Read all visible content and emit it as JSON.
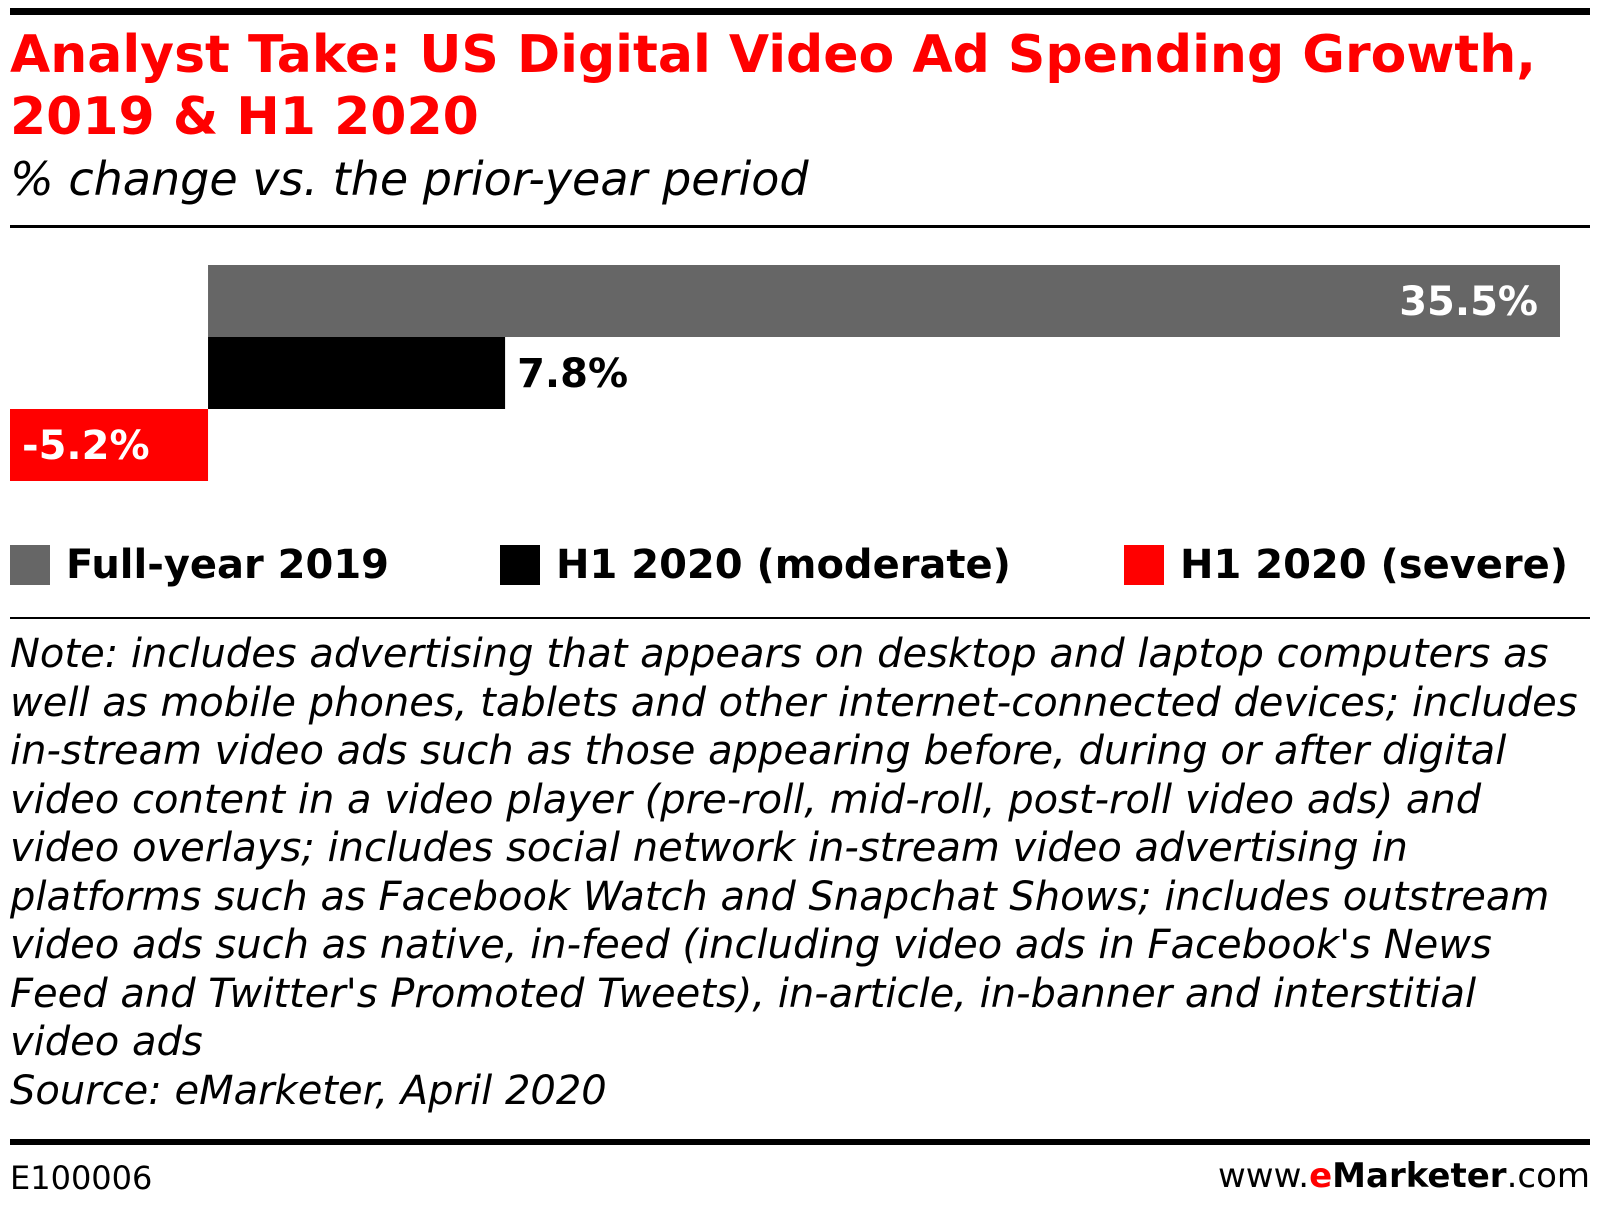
{
  "header": {
    "title": "Analyst Take: US Digital Video Ad Spending Growth, 2019 & H1 2020",
    "subtitle": "% change vs. the prior-year period"
  },
  "chart_data": {
    "type": "bar",
    "orientation": "horizontal",
    "categories": [
      "Full-year 2019",
      "H1 2020 (moderate)",
      "H1 2020 (severe)"
    ],
    "values": [
      35.5,
      7.8,
      -5.2
    ],
    "value_labels": [
      "35.5%",
      "7.8%",
      "-5.2%"
    ],
    "colors": [
      "#666666",
      "#000000",
      "#ff0000"
    ],
    "xlim": [
      -5.2,
      35.5
    ],
    "grid": false,
    "legend_placement": "bottom"
  },
  "legend": {
    "items": [
      {
        "label": "Full-year 2019",
        "color": "#666666"
      },
      {
        "label": "H1 2020 (moderate)",
        "color": "#000000"
      },
      {
        "label": "H1 2020 (severe)",
        "color": "#ff0000"
      }
    ]
  },
  "note": {
    "text": "Note: includes advertising that appears on desktop and laptop computers as well as mobile phones, tablets and other internet-connected devices; includes in-stream video ads such as those appearing before, during or after digital video content in a video player (pre-roll, mid-roll, post-roll video ads) and video overlays; includes social network in-stream video advertising in platforms such as Facebook Watch and Snapchat Shows; includes outstream video ads such as native, in-feed (including video ads in Facebook's News Feed and Twitter's Promoted Tweets), in-article, in-banner and interstitial video ads",
    "source": "Source: eMarketer, April 2020"
  },
  "footer": {
    "chart_id": "E100006",
    "brand_prefix": "www.",
    "brand_e": "e",
    "brand_name": "Marketer",
    "brand_suffix": ".com",
    "brand_color": "#ff0000"
  },
  "colors": {
    "title": "#ff0000",
    "rules": "#000000"
  }
}
